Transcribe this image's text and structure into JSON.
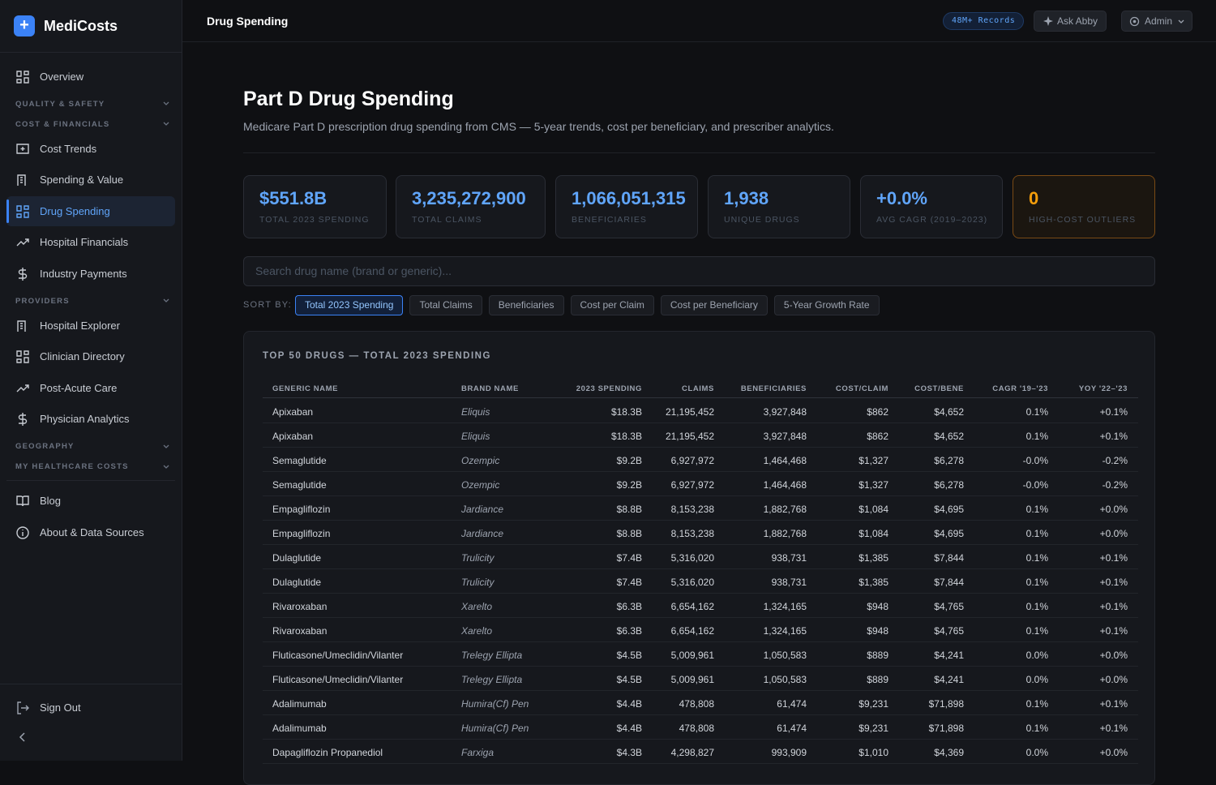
{
  "sidebar": {
    "brand": "MediCosts",
    "nav": [
      {
        "kind": "item",
        "label": "Overview"
      },
      {
        "kind": "section",
        "label": "QUALITY & SAFETY"
      },
      {
        "kind": "section",
        "label": "COST & FINANCIALS"
      },
      {
        "kind": "item",
        "label": "Cost Trends"
      },
      {
        "kind": "item",
        "label": "Spending & Value"
      },
      {
        "kind": "item",
        "label": "Drug Spending",
        "active": true
      },
      {
        "kind": "item",
        "label": "Hospital Financials"
      },
      {
        "kind": "item",
        "label": "Industry Payments"
      },
      {
        "kind": "section",
        "label": "PROVIDERS"
      },
      {
        "kind": "item",
        "label": "Hospital Explorer"
      },
      {
        "kind": "item",
        "label": "Clinician Directory"
      },
      {
        "kind": "item",
        "label": "Post-Acute Care"
      },
      {
        "kind": "item",
        "label": "Physician Analytics"
      },
      {
        "kind": "section",
        "label": "GEOGRAPHY"
      },
      {
        "kind": "section",
        "label": "MY HEALTHCARE COSTS"
      }
    ],
    "footer_nav": [
      "Blog",
      "About & Data Sources"
    ],
    "sign_out": "Sign Out"
  },
  "topbar": {
    "title": "Drug Spending",
    "badge": "48M+ Records",
    "ask": "Ask Abby",
    "user": "Admin"
  },
  "header": {
    "title": "Part D Drug Spending",
    "subtitle": "Medicare Part D prescription drug spending from CMS — 5-year trends, cost per beneficiary, and prescriber analytics."
  },
  "stats": [
    {
      "value": "$551.8B",
      "label": "TOTAL 2023 SPENDING"
    },
    {
      "value": "3,235,272,900",
      "label": "TOTAL CLAIMS"
    },
    {
      "value": "1,066,051,315",
      "label": "BENEFICIARIES"
    },
    {
      "value": "1,938",
      "label": "UNIQUE DRUGS"
    },
    {
      "value": "+0.0%",
      "label": "AVG CAGR (2019–2023)"
    },
    {
      "value": "0",
      "label": "HIGH-COST OUTLIERS"
    }
  ],
  "search_placeholder": "Search drug name (brand or generic)...",
  "sort": {
    "label": "SORT BY:",
    "options": [
      "Total 2023 Spending",
      "Total Claims",
      "Beneficiaries",
      "Cost per Claim",
      "Cost per Beneficiary",
      "5-Year Growth Rate"
    ]
  },
  "table": {
    "title": "TOP 50 DRUGS — TOTAL 2023 SPENDING",
    "columns": [
      "GENERIC NAME",
      "BRAND NAME",
      "2023 SPENDING",
      "CLAIMS",
      "BENEFICIARIES",
      "COST/CLAIM",
      "COST/BENE",
      "CAGR '19–'23",
      "YOY '22–'23"
    ],
    "rows": [
      [
        "Apixaban",
        "Eliquis",
        "$18.3B",
        "21,195,452",
        "3,927,848",
        "$862",
        "$4,652",
        "0.1%",
        "+0.1%"
      ],
      [
        "Apixaban",
        "Eliquis",
        "$18.3B",
        "21,195,452",
        "3,927,848",
        "$862",
        "$4,652",
        "0.1%",
        "+0.1%"
      ],
      [
        "Semaglutide",
        "Ozempic",
        "$9.2B",
        "6,927,972",
        "1,464,468",
        "$1,327",
        "$6,278",
        "-0.0%",
        "-0.2%"
      ],
      [
        "Semaglutide",
        "Ozempic",
        "$9.2B",
        "6,927,972",
        "1,464,468",
        "$1,327",
        "$6,278",
        "-0.0%",
        "-0.2%"
      ],
      [
        "Empagliflozin",
        "Jardiance",
        "$8.8B",
        "8,153,238",
        "1,882,768",
        "$1,084",
        "$4,695",
        "0.1%",
        "+0.0%"
      ],
      [
        "Empagliflozin",
        "Jardiance",
        "$8.8B",
        "8,153,238",
        "1,882,768",
        "$1,084",
        "$4,695",
        "0.1%",
        "+0.0%"
      ],
      [
        "Dulaglutide",
        "Trulicity",
        "$7.4B",
        "5,316,020",
        "938,731",
        "$1,385",
        "$7,844",
        "0.1%",
        "+0.1%"
      ],
      [
        "Dulaglutide",
        "Trulicity",
        "$7.4B",
        "5,316,020",
        "938,731",
        "$1,385",
        "$7,844",
        "0.1%",
        "+0.1%"
      ],
      [
        "Rivaroxaban",
        "Xarelto",
        "$6.3B",
        "6,654,162",
        "1,324,165",
        "$948",
        "$4,765",
        "0.1%",
        "+0.1%"
      ],
      [
        "Rivaroxaban",
        "Xarelto",
        "$6.3B",
        "6,654,162",
        "1,324,165",
        "$948",
        "$4,765",
        "0.1%",
        "+0.1%"
      ],
      [
        "Fluticasone/Umeclidin/Vilanter",
        "Trelegy Ellipta",
        "$4.5B",
        "5,009,961",
        "1,050,583",
        "$889",
        "$4,241",
        "0.0%",
        "+0.0%"
      ],
      [
        "Fluticasone/Umeclidin/Vilanter",
        "Trelegy Ellipta",
        "$4.5B",
        "5,009,961",
        "1,050,583",
        "$889",
        "$4,241",
        "0.0%",
        "+0.0%"
      ],
      [
        "Adalimumab",
        "Humira(Cf) Pen",
        "$4.4B",
        "478,808",
        "61,474",
        "$9,231",
        "$71,898",
        "0.1%",
        "+0.1%"
      ],
      [
        "Adalimumab",
        "Humira(Cf) Pen",
        "$4.4B",
        "478,808",
        "61,474",
        "$9,231",
        "$71,898",
        "0.1%",
        "+0.1%"
      ],
      [
        "Dapagliflozin Propanediol",
        "Farxiga",
        "$4.3B",
        "4,298,827",
        "993,909",
        "$1,010",
        "$4,369",
        "0.0%",
        "+0.0%"
      ]
    ]
  }
}
